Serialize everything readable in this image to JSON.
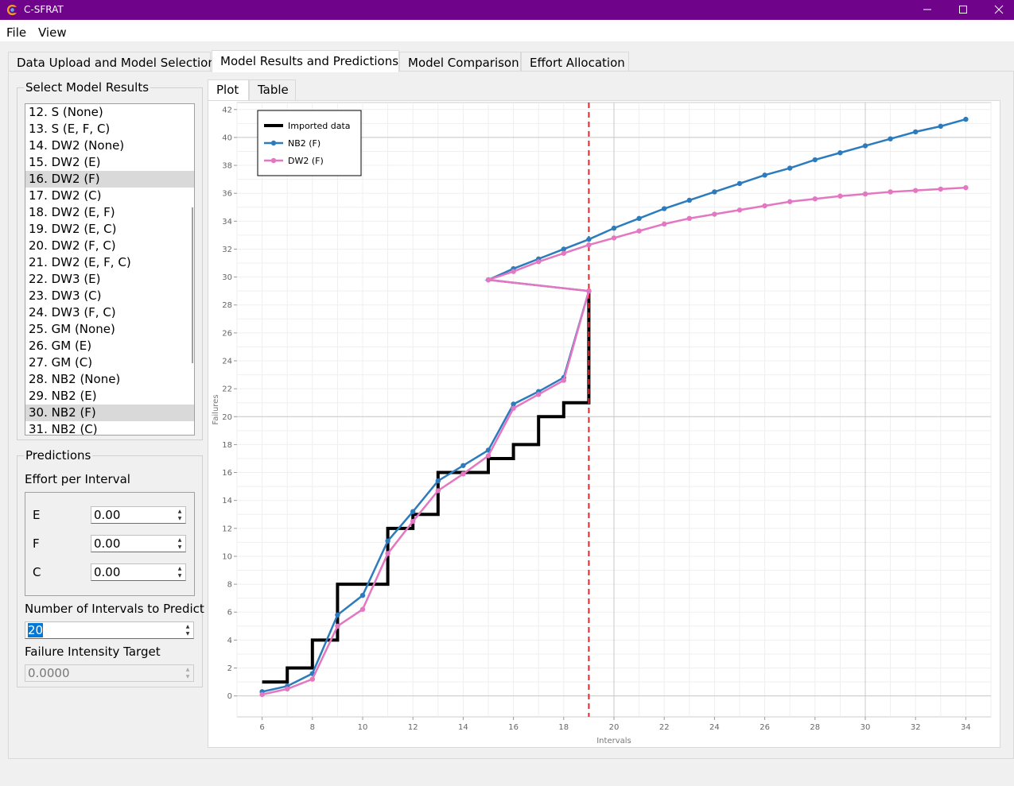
{
  "window": {
    "title": "C-SFRAT",
    "accent": "#6f048a"
  },
  "menu": [
    "File",
    "View"
  ],
  "tabs": [
    {
      "label": "Data Upload and Model Selection",
      "active": false
    },
    {
      "label": "Model Results and Predictions",
      "active": true
    },
    {
      "label": "Model Comparison",
      "active": false
    },
    {
      "label": "Effort Allocation",
      "active": false
    }
  ],
  "select_results": {
    "title": "Select Model Results",
    "items": [
      {
        "label": "12. S (None)",
        "selected": false
      },
      {
        "label": "13. S (E, F, C)",
        "selected": false
      },
      {
        "label": "14. DW2 (None)",
        "selected": false
      },
      {
        "label": "15. DW2 (E)",
        "selected": false
      },
      {
        "label": "16. DW2 (F)",
        "selected": true
      },
      {
        "label": "17. DW2 (C)",
        "selected": false
      },
      {
        "label": "18. DW2 (E, F)",
        "selected": false
      },
      {
        "label": "19. DW2 (E, C)",
        "selected": false
      },
      {
        "label": "20. DW2 (F, C)",
        "selected": false
      },
      {
        "label": "21. DW2 (E, F, C)",
        "selected": false
      },
      {
        "label": "22. DW3 (E)",
        "selected": false
      },
      {
        "label": "23. DW3 (C)",
        "selected": false
      },
      {
        "label": "24. DW3 (F, C)",
        "selected": false
      },
      {
        "label": "25. GM (None)",
        "selected": false
      },
      {
        "label": "26. GM (E)",
        "selected": false
      },
      {
        "label": "27. GM (C)",
        "selected": false
      },
      {
        "label": "28. NB2 (None)",
        "selected": false
      },
      {
        "label": "29. NB2 (E)",
        "selected": false
      },
      {
        "label": "30. NB2 (F)",
        "selected": true
      },
      {
        "label": "31. NB2 (C)",
        "selected": false
      }
    ]
  },
  "predictions": {
    "title": "Predictions",
    "effort_label": "Effort per Interval",
    "efforts": [
      {
        "name": "E",
        "value": "0.00"
      },
      {
        "name": "F",
        "value": "0.00"
      },
      {
        "name": "C",
        "value": "0.00"
      }
    ],
    "intervals_label": "Number of Intervals to Predict",
    "intervals_value": "20",
    "intensity_label": "Failure Intensity Target",
    "intensity_value": "0.0000"
  },
  "view_tabs": [
    {
      "label": "Plot",
      "active": true
    },
    {
      "label": "Table",
      "active": false
    }
  ],
  "chart_data": {
    "type": "line",
    "xlabel": "Intervals",
    "ylabel": "Failures",
    "xlim": [
      5,
      35
    ],
    "ylim": [
      -1.5,
      42.5
    ],
    "xticks": [
      6,
      8,
      10,
      12,
      14,
      16,
      18,
      20,
      22,
      24,
      26,
      28,
      30,
      32,
      34
    ],
    "yticks": [
      0,
      2,
      4,
      6,
      8,
      10,
      12,
      14,
      16,
      18,
      20,
      22,
      24,
      26,
      28,
      30,
      32,
      34,
      36,
      38,
      40,
      42
    ],
    "grid": true,
    "legend_position": "top-left",
    "vline": {
      "x": 19,
      "color": "#e8262b",
      "style": "dashed"
    },
    "series": [
      {
        "name": "Imported data",
        "style": "step",
        "color": "#000000",
        "x": [
          6,
          7,
          8,
          9,
          10,
          11,
          12,
          13,
          14,
          15,
          16,
          17,
          18,
          19
        ],
        "y": [
          1,
          2,
          4,
          8,
          8,
          12,
          13,
          16,
          16,
          17,
          18,
          20,
          21,
          29
        ]
      },
      {
        "name": "NB2 (F)",
        "style": "line-marker",
        "color": "#2c7bbd",
        "x": [
          6,
          7,
          8,
          9,
          10,
          11,
          12,
          13,
          14,
          15,
          16,
          17,
          18,
          19,
          15,
          16,
          17,
          18,
          19,
          20,
          21,
          22,
          23,
          24,
          25,
          26,
          27,
          28,
          29,
          30,
          31,
          32,
          33,
          34
        ],
        "y": [
          0.3,
          0.7,
          1.6,
          5.8,
          7.2,
          11.1,
          13.2,
          15.4,
          16.5,
          17.6,
          20.9,
          21.8,
          22.8,
          29.0,
          29.8,
          30.6,
          31.3,
          32.0,
          32.7,
          33.5,
          34.2,
          34.9,
          35.5,
          36.1,
          36.7,
          37.3,
          37.8,
          38.4,
          38.9,
          39.4,
          39.9,
          40.4,
          40.8,
          41.3
        ]
      },
      {
        "name": "DW2 (F)",
        "style": "line-marker",
        "color": "#e377c2",
        "x": [
          6,
          7,
          8,
          9,
          10,
          11,
          12,
          13,
          14,
          15,
          16,
          17,
          18,
          19,
          15,
          16,
          17,
          18,
          19,
          20,
          21,
          22,
          23,
          24,
          25,
          26,
          27,
          28,
          29,
          30,
          31,
          32,
          33,
          34
        ],
        "y": [
          0.1,
          0.5,
          1.2,
          5.0,
          6.2,
          10.2,
          12.5,
          14.7,
          15.9,
          17.2,
          20.6,
          21.6,
          22.6,
          29.0,
          29.8,
          30.4,
          31.1,
          31.7,
          32.3,
          32.8,
          33.3,
          33.8,
          34.2,
          34.5,
          34.8,
          35.1,
          35.4,
          35.6,
          35.8,
          35.95,
          36.1,
          36.2,
          36.3,
          36.4
        ]
      }
    ]
  }
}
